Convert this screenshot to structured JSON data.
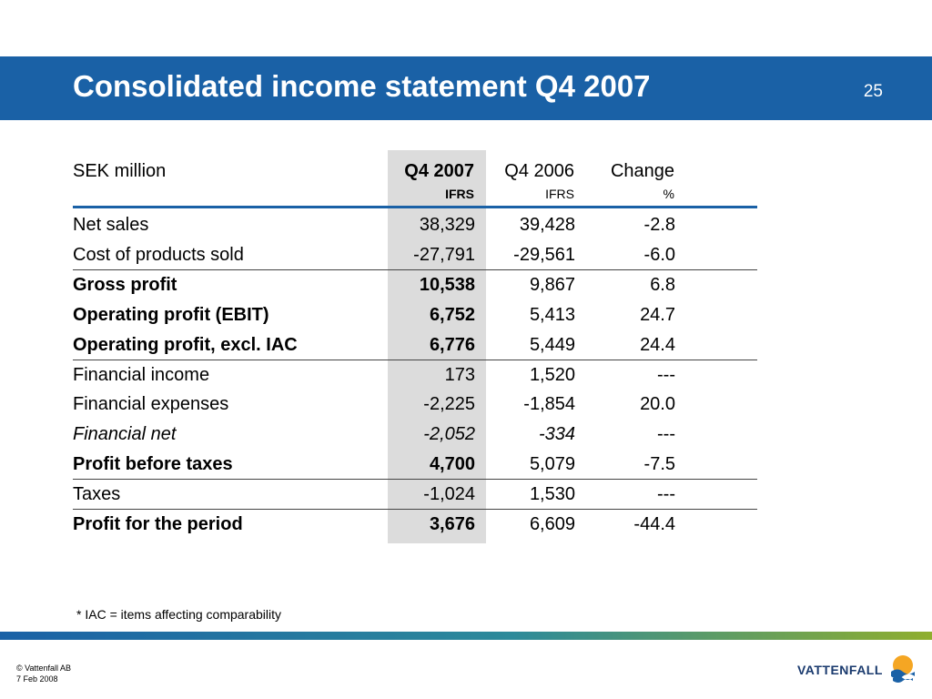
{
  "slide": {
    "title": "Consolidated income statement Q4 2007",
    "page_number": "25"
  },
  "table": {
    "header": {
      "label": "SEK million",
      "columns": [
        {
          "label": "Q4 2007",
          "sub": "IFRS"
        },
        {
          "label": "Q4 2006",
          "sub": "IFRS"
        },
        {
          "label": "Change",
          "sub": "%"
        }
      ]
    },
    "rows": [
      {
        "label": "Net sales",
        "q4_2007": "38,329",
        "q4_2006": "39,428",
        "change": "-2.8"
      },
      {
        "label": "Cost of products sold",
        "q4_2007": "-27,791",
        "q4_2006": "-29,561",
        "change": "-6.0"
      },
      {
        "label": "Gross profit",
        "q4_2007": "10,538",
        "q4_2006": "9,867",
        "change": "6.8"
      },
      {
        "label": "Operating profit (EBIT)",
        "q4_2007": "6,752",
        "q4_2006": "5,413",
        "change": "24.7"
      },
      {
        "label": "Operating profit, excl. IAC",
        "q4_2007": "6,776",
        "q4_2006": "5,449",
        "change": "24.4"
      },
      {
        "label": "Financial income",
        "q4_2007": "173",
        "q4_2006": "1,520",
        "change": "---"
      },
      {
        "label": "Financial expenses",
        "q4_2007": "-2,225",
        "q4_2006": "-1,854",
        "change": "20.0"
      },
      {
        "label": "Financial net",
        "q4_2007": "-2,052",
        "q4_2006": "-334",
        "change": "---"
      },
      {
        "label": "Profit before taxes",
        "q4_2007": "4,700",
        "q4_2006": "5,079",
        "change": "-7.5"
      },
      {
        "label": "Taxes",
        "q4_2007": "-1,024",
        "q4_2006": "1,530",
        "change": "---"
      },
      {
        "label": "Profit for the period",
        "q4_2007": "3,676",
        "q4_2006": "6,609",
        "change": "-44.4"
      }
    ]
  },
  "footnote": "* IAC =  items affecting comparability",
  "footer": {
    "copyright": "© Vattenfall AB",
    "date": "7 Feb 2008",
    "logo_text": "VATTENFALL"
  },
  "colors": {
    "brand_blue": "#1a61a6",
    "highlight_gray": "#dcdcdc",
    "logo_orange": "#f5a623"
  }
}
